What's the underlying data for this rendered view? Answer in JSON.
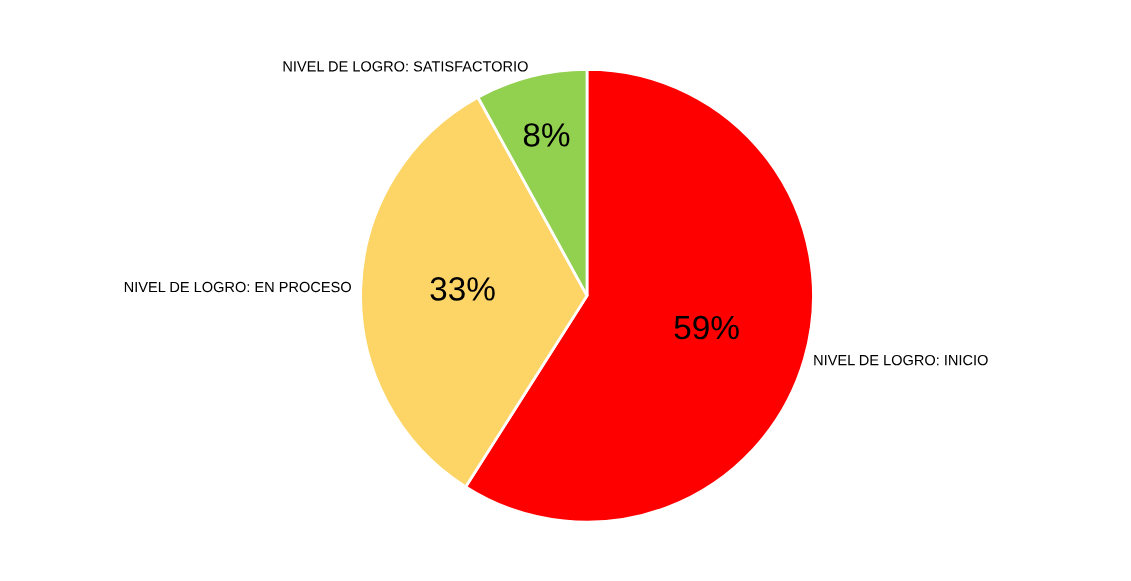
{
  "chart_data": {
    "type": "pie",
    "categories": [
      "NIVEL DE LOGRO: INICIO",
      "NIVEL DE LOGRO: EN PROCESO",
      "NIVEL DE LOGRO: SATISFACTORIO"
    ],
    "values": [
      59,
      33,
      8
    ],
    "colors": [
      "#ff0000",
      "#fdd567",
      "#92d050"
    ],
    "value_labels": [
      "59%",
      "33%",
      "8%"
    ],
    "legend": false
  }
}
